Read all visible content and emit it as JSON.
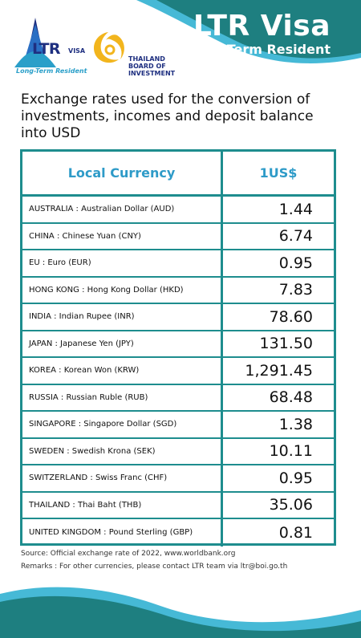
{
  "header": {
    "title": "LTR Visa",
    "subtitle": "Long Term Resident",
    "colors": {
      "wave_dark": "#1e7f80",
      "wave_light": "#46b9d6",
      "title": "#ffffff"
    }
  },
  "logos": {
    "ltr_main": "LTR",
    "ltr_visa": "VISA",
    "ltr_tagline": "Long-Term Resident",
    "boi_line1": "THAILAND",
    "boi_line2": "BOARD OF",
    "boi_line3": "INVESTMENT",
    "icons": [
      "ltr-temple-logo-icon",
      "boi-swirl-logo-icon"
    ]
  },
  "heading": "Exchange rates used for the conversion of investments, incomes and deposit balance into USD",
  "table": {
    "col_currency": "Local Currency",
    "col_rate": "1US$",
    "border_color": "#1e8d8e",
    "header_text_color": "#2e9bc8",
    "rows": [
      {
        "name": "AUSTRALIA : Australian Dollar (AUD)",
        "rate": "1.44"
      },
      {
        "name": "CHINA : Chinese Yuan (CNY)",
        "rate": "6.74"
      },
      {
        "name": "EU : Euro (EUR)",
        "rate": "0.95"
      },
      {
        "name": "HONG KONG : Hong Kong Dollar (HKD)",
        "rate": "7.83"
      },
      {
        "name": "INDIA : Indian Rupee (INR)",
        "rate": "78.60"
      },
      {
        "name": "JAPAN : Japanese Yen (JPY)",
        "rate": "131.50"
      },
      {
        "name": "KOREA : Korean Won (KRW)",
        "rate": "1,291.45"
      },
      {
        "name": "RUSSIA : Russian Ruble (RUB)",
        "rate": "68.48"
      },
      {
        "name": "SINGAPORE : Singapore Dollar (SGD)",
        "rate": "1.38"
      },
      {
        "name": "SWEDEN : Swedish Krona (SEK)",
        "rate": "10.11"
      },
      {
        "name": "SWITZERLAND : Swiss Franc (CHF)",
        "rate": "0.95"
      },
      {
        "name": "THAILAND : Thai Baht (THB)",
        "rate": "35.06"
      },
      {
        "name": "UNITED KINGDOM : Pound Sterling (GBP)",
        "rate": "0.81"
      }
    ]
  },
  "footer": {
    "source": "Source: Official exchange rate of 2022, www.worldbank.org",
    "remarks": "Remarks : For other currencies, please contact LTR team via ltr@boi.go.th"
  }
}
